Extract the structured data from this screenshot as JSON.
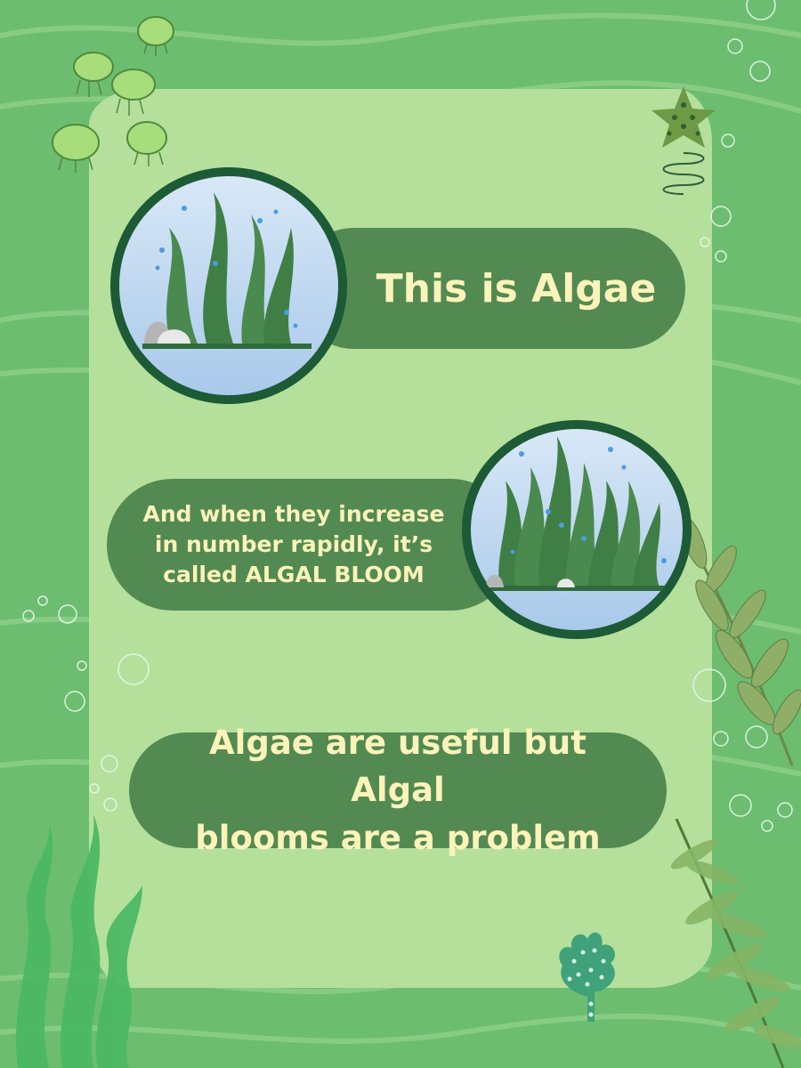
{
  "slide": {
    "heading": "This is Algae",
    "bloom_text_lines": [
      "And when they increase",
      "in number rapidly, it’s",
      "called ALGAL BLOOM"
    ],
    "conclusion_lines": [
      "Algae are useful but Algal",
      "blooms are a problem"
    ]
  },
  "colors": {
    "background": "#6cbd70",
    "card": "#b4e09c",
    "pill": "#528a52",
    "text": "#fbf3b9",
    "ring": "#1d5a36"
  },
  "icons": [
    "seaweed-icon",
    "jellyfish-icon",
    "starfish-icon",
    "bubble-icon",
    "coral-icon",
    "fern-icon",
    "kelp-icon"
  ]
}
